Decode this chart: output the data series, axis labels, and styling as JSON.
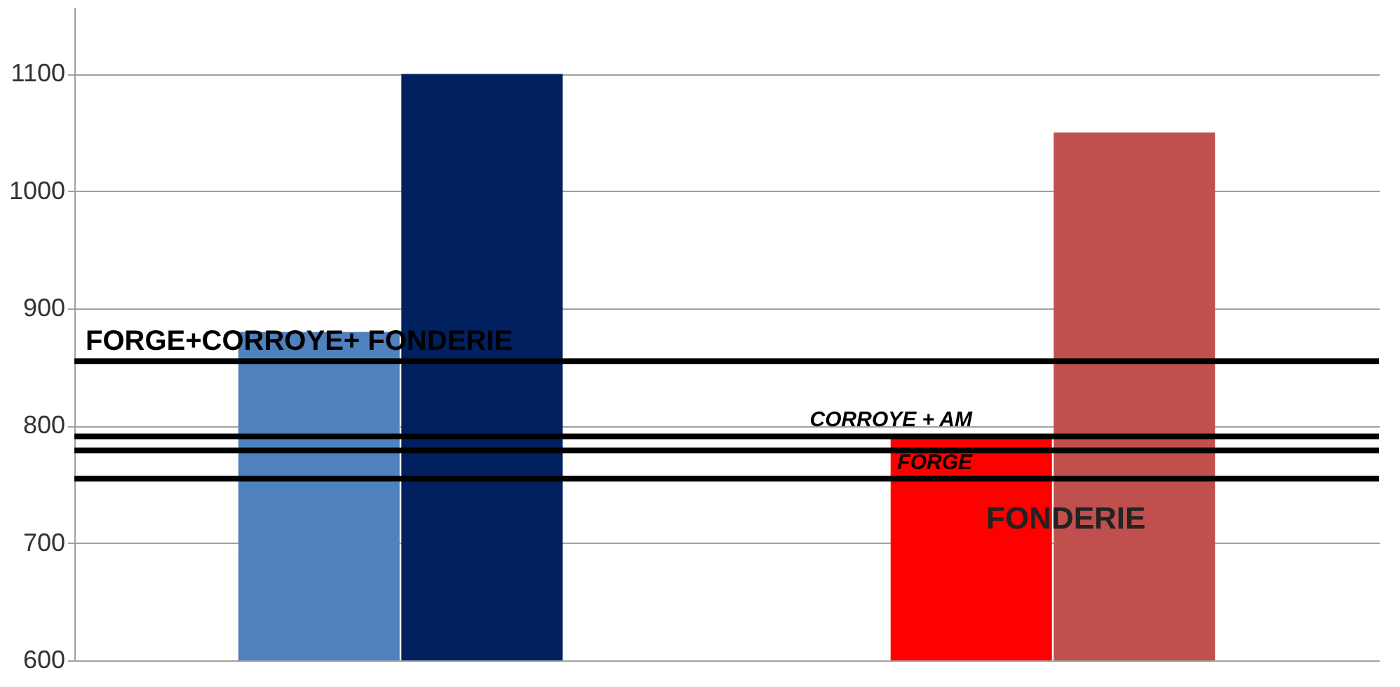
{
  "chart_data": {
    "type": "bar",
    "categories": [
      null,
      null
    ],
    "series": [
      {
        "colors": [
          "#4f81bd",
          "#ff0000"
        ],
        "values": [
          880,
          790
        ]
      },
      {
        "colors": [
          "#002060",
          "#c0504d"
        ],
        "values": [
          1100,
          1050
        ]
      }
    ],
    "ylim": [
      600,
      1157
    ],
    "yticks": [
      600,
      700,
      800,
      900,
      1000,
      1100
    ],
    "grid": "y",
    "legend": false,
    "ref_lines": [
      {
        "axis": "y",
        "value": 855,
        "label": "FORGE+CORROYE+ FONDERIE",
        "color": "#000000"
      },
      {
        "axis": "y",
        "value": 791,
        "label": "CORROYE + AM",
        "color": "#000000"
      },
      {
        "axis": "y",
        "value": 779,
        "label": null,
        "color": "#000000"
      },
      {
        "axis": "y",
        "value": 755,
        "label": "FORGE",
        "color": "#000000"
      }
    ],
    "annotations": [
      "FONDERIE"
    ]
  }
}
